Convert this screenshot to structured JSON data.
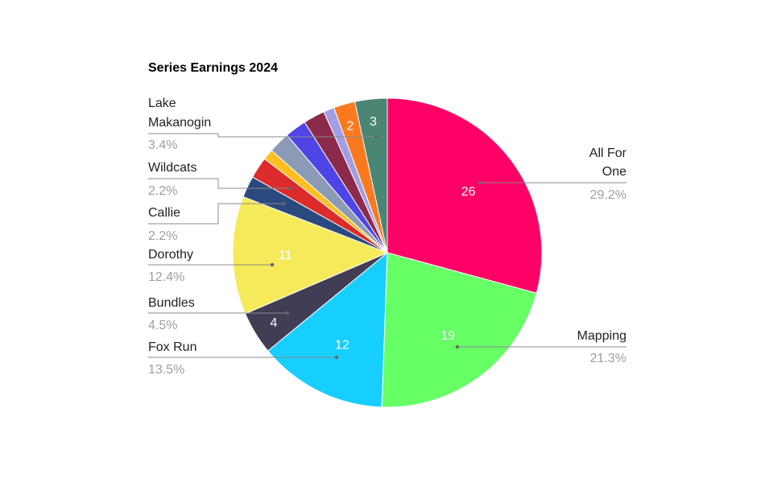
{
  "chart_data": {
    "type": "pie",
    "title": "Series Earnings 2024",
    "slices": [
      {
        "label": "All For One",
        "value": 26,
        "percent": "29.2%",
        "color": "#ff0066",
        "shown_value": "26"
      },
      {
        "label": "Mapping",
        "value": 19,
        "percent": "21.3%",
        "color": "#66ff66",
        "shown_value": "19"
      },
      {
        "label": "Fox Run",
        "value": 12,
        "percent": "13.5%",
        "color": "#16cfff",
        "shown_value": "12"
      },
      {
        "label": "Bundles",
        "value": 4,
        "percent": "4.5%",
        "color": "#403d55",
        "shown_value": "4"
      },
      {
        "label": "Dorothy",
        "value": 11,
        "percent": "12.4%",
        "color": "#f5ea5a",
        "shown_value": "11"
      },
      {
        "label": "",
        "value": 2,
        "percent": "",
        "color": "#2a4a7f",
        "shown_value": ""
      },
      {
        "label": "",
        "value": 2,
        "percent": "",
        "color": "#dd2a2a",
        "shown_value": ""
      },
      {
        "label": "",
        "value": 1,
        "percent": "",
        "color": "#ffbf20",
        "shown_value": ""
      },
      {
        "label": "",
        "value": 2,
        "percent": "",
        "color": "#8b9ab5",
        "shown_value": ""
      },
      {
        "label": "",
        "value": 2,
        "percent": "",
        "color": "#4f45e6",
        "shown_value": ""
      },
      {
        "label": "",
        "value": 2,
        "percent": "",
        "color": "#8c2a4b",
        "shown_value": ""
      },
      {
        "label": "",
        "value": 1,
        "percent": "",
        "color": "#a19ee6",
        "shown_value": ""
      },
      {
        "label": "",
        "value": 2,
        "percent": "",
        "color": "#f97a1e",
        "shown_value": "2"
      },
      {
        "label": "",
        "value": 3,
        "percent": "",
        "color": "#4b8574",
        "shown_value": "3"
      }
    ],
    "callouts_left": [
      {
        "lines": [
          "Lake",
          "Makanogin"
        ],
        "percent": "3.4%"
      },
      {
        "lines": [
          "Wildcats"
        ],
        "percent": "2.2%"
      },
      {
        "lines": [
          "Callie"
        ],
        "percent": "2.2%"
      },
      {
        "lines": [
          "Dorothy"
        ],
        "percent": "12.4%"
      },
      {
        "lines": [
          "Bundles"
        ],
        "percent": "4.5%"
      },
      {
        "lines": [
          "Fox Run"
        ],
        "percent": "13.5%"
      }
    ],
    "callouts_right": [
      {
        "lines": [
          "All For",
          "One"
        ],
        "percent": "29.2%"
      },
      {
        "lines": [
          "Mapping"
        ],
        "percent": "21.3%"
      }
    ],
    "start_angle_deg": 0,
    "direction": "clockwise",
    "legend": "callouts"
  }
}
